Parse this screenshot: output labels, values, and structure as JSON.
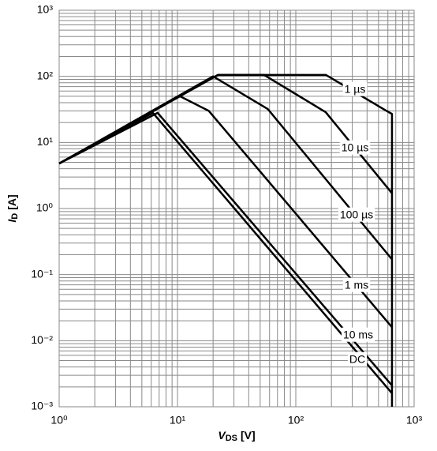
{
  "chart_data": {
    "type": "line",
    "log_x": true,
    "log_y": true,
    "grid": true,
    "minor_grid": true,
    "xlabel": {
      "symbol": "V",
      "subscript": "DS",
      "unit": "[V]"
    },
    "ylabel": {
      "symbol": "I",
      "subscript": "D",
      "unit": "[A]"
    },
    "xlim": [
      1,
      1000
    ],
    "ylim": [
      0.001,
      1000
    ],
    "xticks": [
      {
        "value": 1,
        "label": "10⁰"
      },
      {
        "value": 10,
        "label": "10¹"
      },
      {
        "value": 100,
        "label": "10²"
      },
      {
        "value": 1000,
        "label": "10³"
      }
    ],
    "yticks": [
      {
        "value": 0.001,
        "label": "10⁻³"
      },
      {
        "value": 0.01,
        "label": "10⁻²"
      },
      {
        "value": 0.1,
        "label": "10⁻¹"
      },
      {
        "value": 1,
        "label": "10⁰"
      },
      {
        "value": 10,
        "label": "10¹"
      },
      {
        "value": 100,
        "label": "10²"
      },
      {
        "value": 1000,
        "label": "10³"
      }
    ],
    "series": [
      {
        "name": "1 µs",
        "color": "#000000",
        "x": [
          1,
          22,
          180,
          585,
          650,
          650
        ],
        "values": [
          4.8,
          105,
          105,
          30,
          27,
          0.001
        ]
      },
      {
        "name": "10 µs",
        "color": "#000000",
        "x": [
          1,
          22,
          54,
          179,
          650
        ],
        "values": [
          4.8,
          105,
          105,
          28.7,
          1.7
        ]
      },
      {
        "name": "100 µs",
        "color": "#000000",
        "x": [
          1,
          20,
          58,
          650
        ],
        "values": [
          4.8,
          100,
          32,
          0.17
        ]
      },
      {
        "name": "1 ms",
        "color": "#000000",
        "x": [
          1,
          10.5,
          18.4,
          650
        ],
        "values": [
          4.8,
          50,
          30,
          0.016
        ]
      },
      {
        "name": "10 ms",
        "color": "#000000",
        "x": [
          1,
          6.8,
          650
        ],
        "values": [
          4.8,
          28,
          0.0021
        ]
      },
      {
        "name": "DC",
        "color": "#000000",
        "x": [
          1,
          6.2,
          650
        ],
        "values": [
          4.8,
          28,
          0.0016
        ]
      }
    ]
  }
}
